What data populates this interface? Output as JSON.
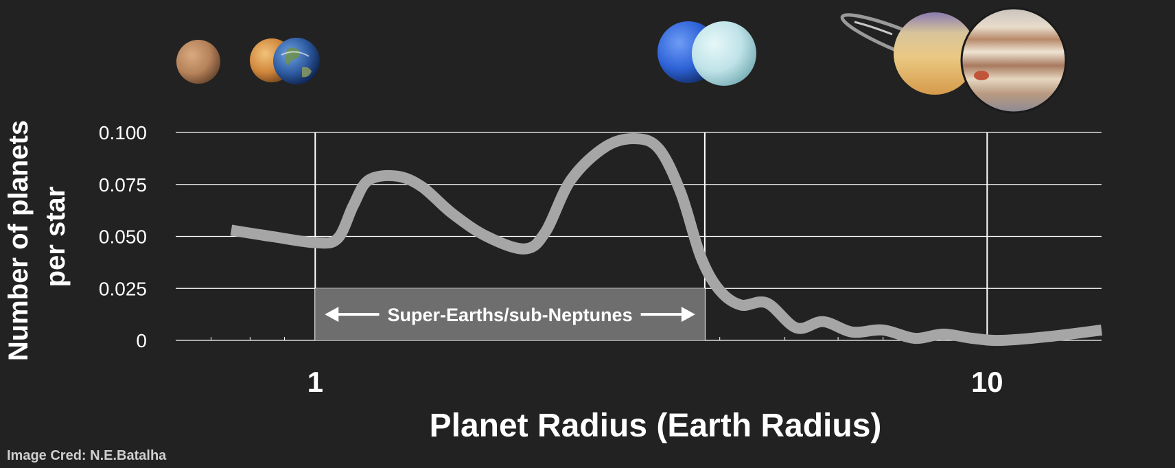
{
  "chart_data": {
    "type": "line",
    "xlabel": "Planet Radius (Earth Radius)",
    "ylabel": [
      "Number of planets",
      "per star"
    ],
    "x_scale": "log",
    "xlim": [
      0.62,
      14.8
    ],
    "ylim": [
      0,
      0.1
    ],
    "y_ticks": [
      "0",
      "0.025",
      "0.050",
      "0.075",
      "0.100"
    ],
    "y_tick_values": [
      0,
      0.025,
      0.05,
      0.075,
      0.1
    ],
    "x_ticks": [
      "1",
      "10"
    ],
    "x_tick_values": [
      1,
      10
    ],
    "x_gridlines": [
      1,
      3.8,
      10
    ],
    "grid": true,
    "series": [
      {
        "color": "#a6a6a6",
        "points": [
          [
            0.75,
            0.053
          ],
          [
            0.86,
            0.05
          ],
          [
            1.0,
            0.047
          ],
          [
            1.08,
            0.049
          ],
          [
            1.14,
            0.065
          ],
          [
            1.2,
            0.077
          ],
          [
            1.32,
            0.079
          ],
          [
            1.44,
            0.074
          ],
          [
            1.6,
            0.061
          ],
          [
            1.8,
            0.05
          ],
          [
            2.05,
            0.044
          ],
          [
            2.2,
            0.052
          ],
          [
            2.4,
            0.077
          ],
          [
            2.7,
            0.093
          ],
          [
            3.0,
            0.097
          ],
          [
            3.25,
            0.092
          ],
          [
            3.5,
            0.071
          ],
          [
            3.75,
            0.04
          ],
          [
            4.0,
            0.024
          ],
          [
            4.3,
            0.017
          ],
          [
            4.7,
            0.018
          ],
          [
            5.2,
            0.006
          ],
          [
            5.7,
            0.009
          ],
          [
            6.3,
            0.004
          ],
          [
            7.0,
            0.005
          ],
          [
            7.8,
            0.001
          ],
          [
            8.6,
            0.003
          ],
          [
            9.5,
            0.001
          ],
          [
            10.5,
            0.0
          ],
          [
            12.5,
            0.002
          ],
          [
            14.8,
            0.005
          ]
        ]
      }
    ],
    "band": {
      "label": "Super-Earths/sub-Neptunes",
      "x_range": [
        1,
        3.8
      ],
      "y_range": [
        0,
        0.025
      ],
      "color": "#6e6e6e"
    }
  },
  "planets": [
    {
      "name": "mars-icon",
      "color": "#b5825a"
    },
    {
      "name": "venus-icon",
      "color": "#d89a4c"
    },
    {
      "name": "earth-icon",
      "color": "#2d5aa0"
    },
    {
      "name": "neptune-icon",
      "color": "#2e63d8"
    },
    {
      "name": "uranus-icon",
      "color": "#bfe3e8"
    },
    {
      "name": "saturn-icon",
      "color": "#e8c07a"
    },
    {
      "name": "jupiter-icon",
      "color": "#d9c3a7"
    }
  ],
  "credit": "Image Cred: N.E.Batalha"
}
